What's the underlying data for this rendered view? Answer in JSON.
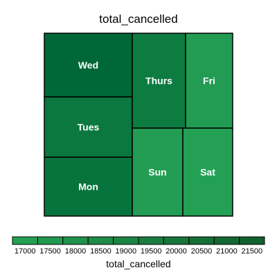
{
  "chart_data": {
    "type": "treemap",
    "title": "total_cancelled",
    "cells": [
      {
        "label": "Wed",
        "value": 21500
      },
      {
        "label": "Tues",
        "value": 20300
      },
      {
        "label": "Mon",
        "value": 20600
      },
      {
        "label": "Thurs",
        "value": 20000
      },
      {
        "label": "Fri",
        "value": 17600
      },
      {
        "label": "Sun",
        "value": 17500
      },
      {
        "label": "Sat",
        "value": 17300
      }
    ],
    "legend": {
      "title": "total_cancelled",
      "ticks": [
        "17000",
        "17500",
        "18000",
        "18500",
        "19000",
        "19500",
        "20000",
        "20500",
        "21000",
        "21500"
      ],
      "colors": [
        "#24a053",
        "#22994f",
        "#20924b",
        "#1e8b47",
        "#1c8443",
        "#1a7d3f",
        "#18763b",
        "#166f37",
        "#146833",
        "#12612f"
      ]
    }
  }
}
